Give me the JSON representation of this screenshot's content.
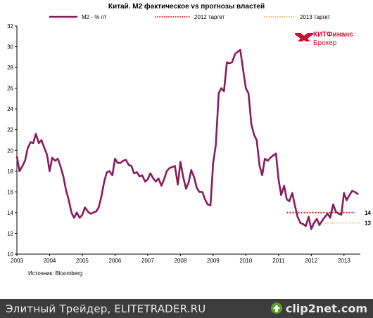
{
  "chart_data": {
    "type": "line",
    "title": "Китай. М2 фактическое vs прогнозы властей",
    "source": "Источник: Bloomberg",
    "legend": [
      {
        "label": "М2 - % г/г",
        "color": "#8b1a5a",
        "style": "solid"
      },
      {
        "label": "2012 таргет",
        "color": "#e21b1b",
        "style": "dotted"
      },
      {
        "label": "2013 таргет",
        "color": "#e8963c",
        "style": "dotted"
      }
    ],
    "x_ticks": [
      "2003",
      "2004",
      "2005",
      "2006",
      "2007",
      "2008",
      "2009",
      "2010",
      "2011",
      "2012",
      "2013"
    ],
    "y_ticks": [
      "10",
      "12",
      "14",
      "16",
      "18",
      "20",
      "22",
      "24",
      "26",
      "28",
      "30",
      "32"
    ],
    "ylim": [
      10,
      32
    ],
    "xlim": [
      2003.0,
      2013.5
    ],
    "grid": false,
    "legend_position": "top",
    "series": [
      {
        "name": "М2 - % г/г",
        "color": "#8b1a5a",
        "x": [
          2003.0,
          2003.08,
          2003.17,
          2003.25,
          2003.33,
          2003.42,
          2003.5,
          2003.58,
          2003.67,
          2003.75,
          2003.83,
          2003.92,
          2004.0,
          2004.08,
          2004.17,
          2004.25,
          2004.33,
          2004.42,
          2004.5,
          2004.58,
          2004.67,
          2004.75,
          2004.83,
          2004.92,
          2005.0,
          2005.08,
          2005.17,
          2005.25,
          2005.33,
          2005.42,
          2005.5,
          2005.58,
          2005.67,
          2005.75,
          2005.83,
          2005.92,
          2006.0,
          2006.08,
          2006.17,
          2006.25,
          2006.33,
          2006.42,
          2006.5,
          2006.58,
          2006.67,
          2006.75,
          2006.83,
          2006.92,
          2007.0,
          2007.08,
          2007.17,
          2007.25,
          2007.33,
          2007.42,
          2007.5,
          2007.58,
          2007.67,
          2007.75,
          2007.83,
          2007.92,
          2008.0,
          2008.08,
          2008.17,
          2008.25,
          2008.33,
          2008.42,
          2008.5,
          2008.58,
          2008.67,
          2008.75,
          2008.83,
          2008.92,
          2009.0,
          2009.08,
          2009.17,
          2009.25,
          2009.33,
          2009.42,
          2009.5,
          2009.58,
          2009.67,
          2009.75,
          2009.83,
          2009.92,
          2010.0,
          2010.08,
          2010.17,
          2010.25,
          2010.33,
          2010.42,
          2010.5,
          2010.58,
          2010.67,
          2010.75,
          2010.83,
          2010.92,
          2011.0,
          2011.08,
          2011.17,
          2011.25,
          2011.33,
          2011.42,
          2011.5,
          2011.58,
          2011.67,
          2011.75,
          2011.83,
          2011.92,
          2012.0,
          2012.08,
          2012.17,
          2012.25,
          2012.33,
          2012.42,
          2012.5,
          2012.58,
          2012.67,
          2012.75,
          2012.83,
          2012.92,
          2013.0,
          2013.08,
          2013.17,
          2013.25,
          2013.33,
          2013.42
        ],
        "y": [
          19.4,
          18.0,
          18.5,
          19.0,
          20.2,
          20.8,
          20.7,
          21.6,
          20.7,
          21.0,
          20.3,
          19.6,
          18.0,
          19.3,
          19.0,
          19.2,
          18.5,
          17.5,
          16.2,
          15.3,
          14.0,
          13.5,
          14.0,
          13.5,
          13.8,
          14.5,
          14.1,
          13.9,
          14.0,
          14.1,
          14.5,
          15.5,
          17.0,
          17.9,
          18.0,
          17.6,
          19.2,
          18.8,
          18.8,
          19.0,
          19.1,
          18.6,
          18.5,
          17.8,
          17.9,
          17.5,
          17.6,
          17.0,
          17.2,
          17.8,
          17.3,
          17.0,
          17.3,
          16.6,
          17.2,
          18.0,
          18.3,
          18.4,
          18.5,
          16.7,
          18.9,
          17.5,
          16.3,
          16.9,
          18.1,
          17.4,
          16.4,
          16.0,
          16.0,
          15.3,
          14.8,
          14.7,
          18.8,
          20.5,
          25.5,
          26.0,
          25.7,
          28.5,
          28.4,
          28.5,
          29.3,
          29.5,
          29.7,
          27.7,
          26.0,
          25.5,
          22.5,
          21.5,
          21.0,
          18.5,
          17.6,
          19.2,
          19.0,
          19.3,
          19.5,
          19.7,
          17.2,
          15.7,
          16.6,
          15.3,
          15.1,
          15.9,
          14.7,
          13.6,
          13.0,
          12.9,
          12.7,
          13.6,
          12.4,
          13.0,
          13.4,
          12.8,
          13.2,
          13.6,
          13.9,
          13.5,
          14.8,
          14.1,
          13.9,
          13.8,
          15.9,
          15.2,
          15.7,
          16.1,
          16.0,
          15.8
        ]
      }
    ],
    "reference_lines": [
      {
        "name": "2012 таргет",
        "value": 14,
        "label": "14",
        "color": "#e21b1b",
        "x_from": 2011.25,
        "x_to": 2013.33
      },
      {
        "name": "2013 таргет",
        "value": 13,
        "label": "13",
        "color": "#e8963c",
        "x_from": 2012.42,
        "x_to": 2013.5
      }
    ]
  },
  "brand": {
    "name": "КИТФинанс",
    "subtitle": "Брокер",
    "color": "#c8102e"
  },
  "footer": {
    "text": "Элитный Трейдер, ELITETRADER.RU",
    "logo_text": "clip2net.com"
  }
}
